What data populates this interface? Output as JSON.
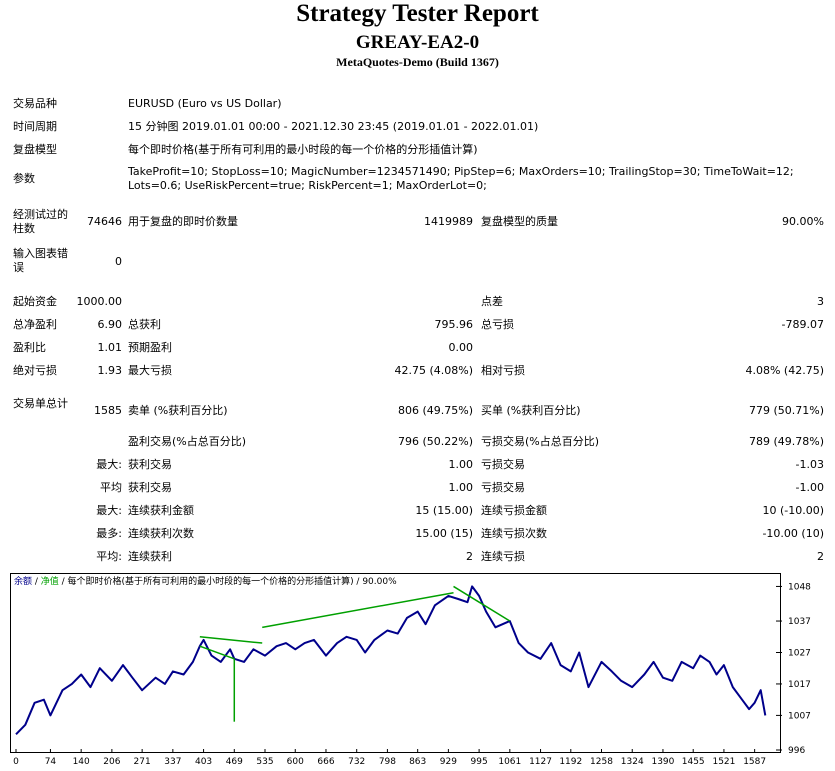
{
  "header": {
    "title": "Strategy Tester Report",
    "ea": "GREAY-EA2-0",
    "build": "MetaQuotes-Demo (Build 1367)"
  },
  "info": {
    "symbol_label": "交易品种",
    "symbol_value": "EURUSD (Euro vs US Dollar)",
    "period_label": "时间周期",
    "period_value": "15 分钟图 2019.01.01 00:00 - 2021.12.30 23:45 (2019.01.01 - 2022.01.01)",
    "model_label": "复盘模型",
    "model_value": "每个即时价格(基于所有可利用的最小时段的每一个价格的分形插值计算)",
    "params_label": "参数",
    "params_value": "TakeProfit=10; StopLoss=10; MagicNumber=1234571490; PipStep=6; MaxOrders=10; TrailingStop=30; TimeToWait=12; Lots=0.6; UseRiskPercent=true; RiskPercent=1; MaxOrderLot=0;"
  },
  "bars": {
    "bars_label": "经测试过的柱数",
    "bars_value": "74646",
    "ticks_label": "用于复盘的即时价数量",
    "ticks_value": "1419989",
    "quality_label": "复盘模型的质量",
    "quality_value": "90.00%",
    "errors_label": "输入图表错误",
    "errors_value": "0"
  },
  "results": {
    "deposit_label": "起始资金",
    "deposit_value": "1000.00",
    "spread_label": "点差",
    "spread_value": "3",
    "net_label": "总净盈利",
    "net_value": "6.90",
    "gross_profit_label": "总获利",
    "gross_profit_value": "795.96",
    "gross_loss_label": "总亏损",
    "gross_loss_value": "-789.07",
    "pf_label": "盈利比",
    "pf_value": "1.01",
    "payoff_label": "预期盈利",
    "payoff_value": "0.00",
    "abs_dd_label": "绝对亏损",
    "abs_dd_value": "1.93",
    "max_dd_label": "最大亏损",
    "max_dd_value": "42.75 (4.08%)",
    "rel_dd_label": "相对亏损",
    "rel_dd_value": "4.08% (42.75)"
  },
  "trades": {
    "total_label": "交易单总计",
    "total_value": "1585",
    "short_label": "卖单 (%获利百分比)",
    "short_value": "806 (49.75%)",
    "long_label": "买单 (%获利百分比)",
    "long_value": "779 (50.71%)",
    "win_label": "盈利交易(%占总百分比)",
    "win_value": "796 (50.22%)",
    "loss_label": "亏损交易(%占总百分比)",
    "loss_value": "789 (49.78%)",
    "largest_label": "最大:",
    "largest_win_label": "获利交易",
    "largest_win_value": "1.00",
    "largest_loss_label": "亏损交易",
    "largest_loss_value": "-1.03",
    "avg_label": "平均",
    "avg_win_label": "获利交易",
    "avg_win_value": "1.00",
    "avg_loss_label": "亏损交易",
    "avg_loss_value": "-1.00",
    "max_cons_label": "最大:",
    "max_cons_win_label": "连续获利金额",
    "max_cons_win_value": "15 (15.00)",
    "max_cons_loss_label": "连续亏损金额",
    "max_cons_loss_value": "10 (-10.00)",
    "most_label": "最多:",
    "most_win_label": "连续获利次数",
    "most_win_value": "15.00 (15)",
    "most_loss_label": "连续亏损次数",
    "most_loss_value": "-10.00 (10)",
    "avg_cons_label": "平均:",
    "avg_cons_win_label": "连续获利",
    "avg_cons_win_value": "2",
    "avg_cons_loss_label": "连续亏损",
    "avg_cons_loss_value": "2"
  },
  "chart_data": {
    "type": "line",
    "legend": {
      "balance": "余额",
      "sep1": " / ",
      "equity": "净值",
      "rest": " / 每个即时价格(基于所有可利用的最小时段的每一个价格的分形插值计算) / 90.00%"
    },
    "colors": {
      "balance": "#00008b",
      "equity": "#00a000"
    },
    "x_ticks": [
      0,
      74,
      140,
      206,
      271,
      337,
      403,
      469,
      535,
      600,
      666,
      732,
      798,
      863,
      929,
      995,
      1061,
      1127,
      1192,
      1258,
      1324,
      1390,
      1455,
      1521,
      1587
    ],
    "y_ticks": [
      996,
      1007,
      1017,
      1027,
      1037,
      1048
    ],
    "xlim": [
      0,
      1620
    ],
    "ylim": [
      996,
      1051
    ],
    "series": [
      {
        "name": "余额",
        "x": [
          0,
          20,
          40,
          60,
          74,
          100,
          120,
          140,
          160,
          180,
          206,
          230,
          250,
          271,
          300,
          320,
          337,
          360,
          380,
          395,
          403,
          420,
          440,
          460,
          469,
          490,
          510,
          535,
          560,
          580,
          600,
          620,
          640,
          666,
          690,
          710,
          732,
          750,
          770,
          798,
          820,
          840,
          863,
          880,
          900,
          929,
          950,
          970,
          980,
          995,
          1010,
          1030,
          1061,
          1080,
          1100,
          1127,
          1150,
          1170,
          1192,
          1210,
          1230,
          1258,
          1280,
          1300,
          1324,
          1350,
          1370,
          1390,
          1410,
          1430,
          1455,
          1470,
          1490,
          1505,
          1521,
          1540,
          1560,
          1575,
          1587,
          1600,
          1610
        ],
        "y": [
          1001,
          1004,
          1011,
          1012,
          1007,
          1015,
          1017,
          1020,
          1016,
          1022,
          1018,
          1023,
          1019,
          1015,
          1019,
          1017,
          1021,
          1020,
          1024,
          1029,
          1031,
          1026,
          1024,
          1028,
          1025,
          1024,
          1028,
          1026,
          1029,
          1030,
          1028,
          1030,
          1031,
          1026,
          1030,
          1032,
          1031,
          1027,
          1031,
          1034,
          1033,
          1038,
          1040,
          1036,
          1042,
          1045,
          1044,
          1043,
          1048,
          1045,
          1040,
          1035,
          1037,
          1030,
          1027,
          1025,
          1030,
          1023,
          1021,
          1027,
          1016,
          1024,
          1021,
          1018,
          1016,
          1020,
          1024,
          1019,
          1018,
          1024,
          1022,
          1026,
          1024,
          1020,
          1023,
          1016,
          1012,
          1009,
          1011,
          1015,
          1007
        ]
      },
      {
        "name": "净值",
        "x": [
          469,
          469,
          469,
          395,
          395,
          529,
          529,
          940,
          940,
          1061,
          1061
        ],
        "y": [
          1025,
          1005,
          1025,
          1029,
          1032,
          1030,
          1035,
          1046,
          1048,
          1037,
          1040
        ]
      }
    ]
  }
}
